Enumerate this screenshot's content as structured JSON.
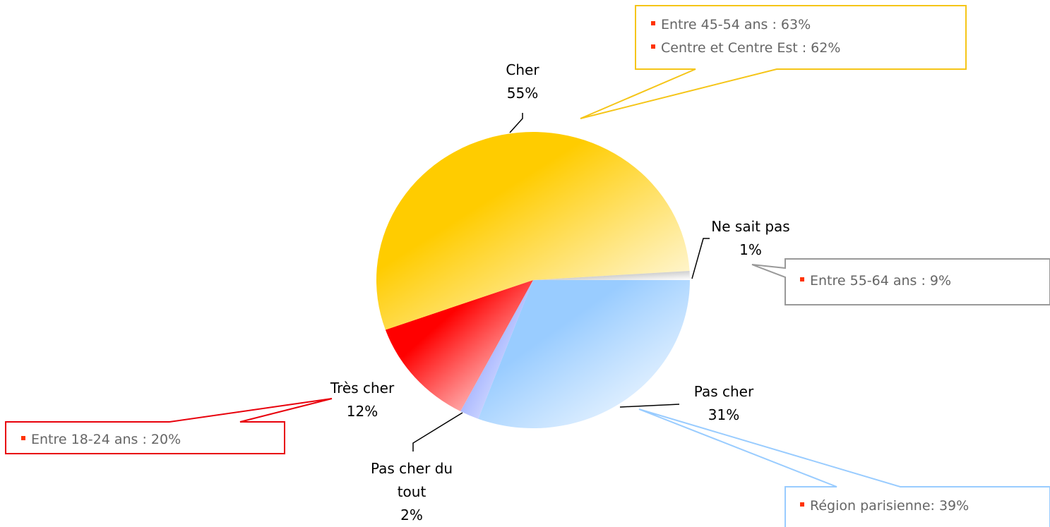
{
  "chart_data": {
    "type": "pie",
    "categories": [
      "Pas cher",
      "Pas cher du tout",
      "Très cher",
      "Cher",
      "Ne sait pas"
    ],
    "values": [
      31,
      2,
      12,
      55,
      1
    ],
    "value_labels": [
      "31%",
      "2%",
      "12%",
      "55%",
      "1%"
    ],
    "colors": [
      "#99ccff",
      "#99aaff",
      "#ff0000",
      "#ffcc00",
      "#c0c0c0"
    ],
    "annotations": [
      {
        "color": "#f5c518",
        "items": [
          "Entre 45-54 ans : 63%",
          "Centre et Centre Est : 62%"
        ]
      },
      {
        "color": "#999999",
        "items": [
          "Entre 55-64 ans : 9%"
        ]
      },
      {
        "color": "#e8000b",
        "items": [
          "Entre 18-24 ans : 20%"
        ]
      },
      {
        "color": "#99ccff",
        "items": [
          "Région parisienne: 39%"
        ]
      }
    ]
  }
}
